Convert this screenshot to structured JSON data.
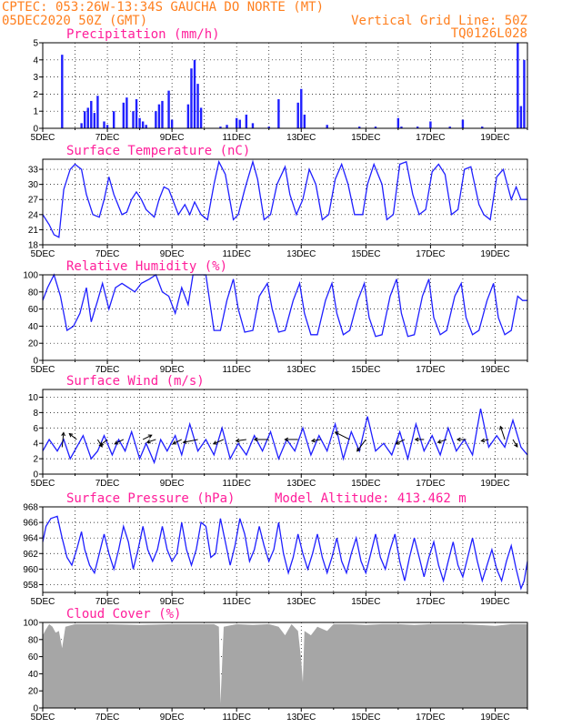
{
  "header": {
    "left_line1": "CPTEC:  053:26W-13:34S  GAUCHA DO NORTE (MT)",
    "left_line2": "05DEC2020 50Z (GMT)",
    "right_line2": "Vertical Grid Line: 50Z",
    "right_line3": "TQ0126L028"
  },
  "x_ticks": [
    "5DEC",
    "7DEC",
    "9DEC",
    "11DEC",
    "13DEC",
    "15DEC",
    "17DEC",
    "19DEC"
  ],
  "colors": {
    "header": "#ff7f1e",
    "title": "#ff1e9a",
    "series": "#1f1fff",
    "cloud": "#a6a6a6"
  },
  "chart_data": [
    {
      "id": "precip",
      "type": "bar",
      "title": "Precipitation (mm/h)",
      "ylim": [
        0,
        5
      ],
      "yticks": [
        0,
        1,
        2,
        3,
        4,
        5
      ],
      "x_days": [
        5.6,
        6.2,
        6.3,
        6.4,
        6.5,
        6.6,
        6.7,
        6.9,
        7.0,
        7.2,
        7.5,
        7.6,
        7.8,
        7.9,
        8.0,
        8.1,
        8.2,
        8.5,
        8.6,
        8.7,
        8.9,
        9.0,
        9.5,
        9.6,
        9.7,
        9.8,
        9.9,
        10.5,
        10.7,
        11.0,
        11.1,
        11.3,
        11.5,
        12.0,
        12.3,
        12.9,
        13.0,
        13.1,
        13.8,
        14.8,
        15.3,
        16.0,
        16.1,
        16.6,
        17.0,
        17.6,
        18.0,
        18.6,
        19.7,
        19.8,
        19.9
      ],
      "values": [
        4.3,
        0.3,
        1.0,
        1.2,
        1.6,
        0.9,
        1.9,
        0.4,
        0.2,
        1.0,
        1.5,
        1.8,
        1.0,
        1.7,
        0.6,
        0.4,
        0.2,
        1.0,
        1.4,
        1.6,
        2.2,
        0.5,
        1.4,
        3.5,
        4.0,
        2.6,
        1.2,
        0.1,
        0.2,
        0.6,
        0.5,
        0.8,
        0.3,
        0.1,
        1.7,
        1.5,
        2.3,
        0.8,
        0.2,
        0.1,
        0.1,
        0.6,
        0.1,
        0.1,
        0.4,
        0.1,
        0.5,
        0.1,
        5.0,
        1.3,
        4.0
      ]
    },
    {
      "id": "temp",
      "type": "line",
      "title": "Surface Temperature (nC)",
      "ylim": [
        18,
        35
      ],
      "yticks": [
        18,
        21,
        24,
        27,
        30,
        33
      ],
      "x_days": [
        5.0,
        5.2,
        5.35,
        5.5,
        5.65,
        5.85,
        6.0,
        6.2,
        6.35,
        6.55,
        6.75,
        6.9,
        7.05,
        7.2,
        7.45,
        7.6,
        7.75,
        7.9,
        8.05,
        8.2,
        8.45,
        8.6,
        8.75,
        8.9,
        9.05,
        9.2,
        9.4,
        9.55,
        9.7,
        9.9,
        10.1,
        10.3,
        10.45,
        10.65,
        10.9,
        11.05,
        11.25,
        11.5,
        11.65,
        11.85,
        12.05,
        12.25,
        12.5,
        12.65,
        12.85,
        13.05,
        13.25,
        13.45,
        13.65,
        13.85,
        14.05,
        14.25,
        14.45,
        14.65,
        14.9,
        15.05,
        15.25,
        15.5,
        15.65,
        15.85,
        16.05,
        16.25,
        16.45,
        16.65,
        16.85,
        17.05,
        17.25,
        17.45,
        17.65,
        17.85,
        18.05,
        18.25,
        18.5,
        18.65,
        18.85,
        19.05,
        19.25,
        19.5,
        19.65,
        19.8,
        20.0
      ],
      "values": [
        24,
        22,
        20,
        19.5,
        29,
        33,
        34,
        33,
        28,
        24,
        23.5,
        27,
        31.5,
        28,
        24,
        24.5,
        27,
        28.5,
        27,
        25,
        23.5,
        27,
        29.5,
        29,
        26.5,
        24,
        26,
        24,
        26.5,
        24,
        23,
        30,
        34.5,
        32,
        23,
        24,
        29,
        34.5,
        31,
        23,
        24,
        30,
        33.5,
        28,
        24,
        27,
        33,
        30,
        23,
        24,
        31,
        34,
        30,
        24,
        24,
        30,
        34,
        30,
        23,
        24,
        34,
        34.5,
        28,
        24,
        25,
        32.5,
        34,
        32,
        24,
        25,
        33,
        33.5,
        26,
        24,
        23,
        31.5,
        33,
        27,
        29.5,
        27,
        27
      ]
    },
    {
      "id": "rh",
      "type": "line",
      "title": "Relative Humidity (%)",
      "ylim": [
        0,
        100
      ],
      "yticks": [
        0,
        20,
        40,
        60,
        80,
        100
      ],
      "x_days": [
        5.0,
        5.15,
        5.35,
        5.55,
        5.75,
        5.95,
        6.15,
        6.35,
        6.5,
        6.7,
        6.85,
        7.05,
        7.25,
        7.45,
        7.65,
        7.85,
        8.05,
        8.3,
        8.5,
        8.7,
        8.9,
        9.1,
        9.3,
        9.5,
        9.65,
        9.85,
        10.05,
        10.3,
        10.5,
        10.7,
        10.9,
        11.05,
        11.25,
        11.5,
        11.7,
        11.95,
        12.1,
        12.3,
        12.5,
        12.75,
        12.95,
        13.1,
        13.3,
        13.5,
        13.75,
        13.95,
        14.1,
        14.3,
        14.5,
        14.75,
        14.95,
        15.1,
        15.3,
        15.5,
        15.75,
        15.95,
        16.1,
        16.3,
        16.5,
        16.75,
        16.95,
        17.1,
        17.3,
        17.5,
        17.75,
        17.95,
        18.1,
        18.3,
        18.5,
        18.75,
        18.95,
        19.1,
        19.3,
        19.5,
        19.7,
        19.85,
        20.0
      ],
      "values": [
        70,
        85,
        100,
        75,
        35,
        40,
        55,
        85,
        45,
        70,
        90,
        60,
        85,
        90,
        85,
        80,
        90,
        95,
        100,
        80,
        75,
        55,
        85,
        65,
        100,
        100,
        100,
        35,
        35,
        70,
        95,
        60,
        33,
        35,
        75,
        90,
        60,
        33,
        35,
        70,
        90,
        55,
        30,
        30,
        70,
        90,
        55,
        30,
        35,
        70,
        90,
        50,
        28,
        30,
        75,
        95,
        55,
        28,
        30,
        75,
        95,
        50,
        30,
        35,
        75,
        90,
        50,
        30,
        35,
        70,
        90,
        50,
        30,
        35,
        75,
        70,
        70
      ]
    },
    {
      "id": "wind",
      "type": "line",
      "title": "Surface Wind (m/s)",
      "ylim": [
        0,
        11
      ],
      "yticks": [
        0,
        2,
        4,
        6,
        8,
        10
      ],
      "x_days": [
        5.0,
        5.2,
        5.45,
        5.65,
        5.85,
        6.05,
        6.25,
        6.5,
        6.7,
        6.9,
        7.15,
        7.35,
        7.55,
        7.75,
        8.0,
        8.2,
        8.45,
        8.65,
        8.85,
        9.1,
        9.3,
        9.55,
        9.8,
        10.05,
        10.3,
        10.55,
        10.8,
        11.05,
        11.3,
        11.55,
        11.8,
        12.05,
        12.3,
        12.55,
        12.8,
        13.05,
        13.3,
        13.55,
        13.8,
        14.05,
        14.3,
        14.55,
        14.8,
        15.05,
        15.3,
        15.55,
        15.8,
        16.05,
        16.3,
        16.55,
        16.8,
        17.05,
        17.3,
        17.55,
        17.8,
        18.05,
        18.3,
        18.55,
        18.8,
        19.05,
        19.3,
        19.55,
        19.8,
        20.0
      ],
      "values": [
        3.0,
        4.5,
        3.0,
        4.5,
        2.0,
        3.5,
        5.0,
        2.0,
        3.0,
        5.0,
        2.5,
        4.5,
        3.0,
        5.5,
        2.0,
        4.0,
        1.5,
        4.5,
        3.0,
        5.0,
        2.5,
        6.5,
        3.0,
        4.5,
        2.5,
        6.0,
        2.0,
        4.0,
        2.5,
        5.0,
        3.0,
        5.5,
        2.0,
        4.5,
        3.0,
        6.0,
        2.5,
        5.0,
        3.0,
        6.5,
        2.0,
        5.5,
        3.0,
        7.5,
        3.0,
        4.0,
        2.5,
        5.5,
        2.0,
        6.5,
        3.0,
        5.0,
        2.5,
        6.0,
        3.0,
        4.5,
        2.5,
        8.5,
        3.5,
        5.0,
        3.5,
        7.0,
        3.5,
        2.5
      ],
      "vectors": [
        {
          "x_day": 5.6,
          "y": 3.5,
          "u": 0.1,
          "v": 1.0
        },
        {
          "x_day": 6.05,
          "y": 4.5,
          "u": -0.5,
          "v": 0.4
        },
        {
          "x_day": 6.7,
          "y": 4.5,
          "u": 0.3,
          "v": -0.5
        },
        {
          "x_day": 7.0,
          "y": 4.5,
          "u": -0.5,
          "v": -0.4
        },
        {
          "x_day": 7.5,
          "y": 4.5,
          "u": -0.6,
          "v": -0.3
        },
        {
          "x_day": 8.1,
          "y": 4.5,
          "u": 0.6,
          "v": 0.3
        },
        {
          "x_day": 8.5,
          "y": 4.5,
          "u": -0.6,
          "v": -0.2
        },
        {
          "x_day": 9.3,
          "y": 4.5,
          "u": -0.6,
          "v": -0.3
        },
        {
          "x_day": 9.8,
          "y": 4.5,
          "u": -1.0,
          "v": -0.2
        },
        {
          "x_day": 10.6,
          "y": 4.5,
          "u": -0.7,
          "v": -0.3
        },
        {
          "x_day": 11.3,
          "y": 4.5,
          "u": -0.7,
          "v": -0.1
        },
        {
          "x_day": 12.0,
          "y": 4.5,
          "u": -1.0,
          "v": 0.0
        },
        {
          "x_day": 12.9,
          "y": 4.5,
          "u": -0.9,
          "v": 0.0
        },
        {
          "x_day": 13.6,
          "y": 4.5,
          "u": -0.6,
          "v": -0.1
        },
        {
          "x_day": 14.5,
          "y": 4.5,
          "u": -1.0,
          "v": 0.5
        },
        {
          "x_day": 15.0,
          "y": 4.5,
          "u": -0.6,
          "v": -0.8
        },
        {
          "x_day": 16.2,
          "y": 4.5,
          "u": -0.6,
          "v": -0.3
        },
        {
          "x_day": 16.8,
          "y": 4.5,
          "u": -0.6,
          "v": 0.0
        },
        {
          "x_day": 17.5,
          "y": 4.5,
          "u": -0.6,
          "v": -0.2
        },
        {
          "x_day": 18.1,
          "y": 4.5,
          "u": -0.6,
          "v": 0.0
        },
        {
          "x_day": 18.8,
          "y": 4.5,
          "u": -0.5,
          "v": -0.1
        },
        {
          "x_day": 19.3,
          "y": 4.5,
          "u": -0.3,
          "v": 0.9
        },
        {
          "x_day": 19.55,
          "y": 4.5,
          "u": 0.3,
          "v": -0.5
        }
      ]
    },
    {
      "id": "pres",
      "type": "line",
      "title": "Surface Pressure (hPa)",
      "note": "Model Altitude: 413.462 m",
      "ylim": [
        957,
        968
      ],
      "yticks": [
        958,
        960,
        962,
        964,
        966,
        968
      ],
      "x_days": [
        5.0,
        5.1,
        5.25,
        5.45,
        5.6,
        5.75,
        5.9,
        6.05,
        6.2,
        6.3,
        6.45,
        6.6,
        6.75,
        6.9,
        7.05,
        7.2,
        7.35,
        7.5,
        7.65,
        7.8,
        7.95,
        8.1,
        8.25,
        8.4,
        8.55,
        8.7,
        8.85,
        9.0,
        9.15,
        9.3,
        9.45,
        9.6,
        9.75,
        9.9,
        10.05,
        10.2,
        10.35,
        10.5,
        10.65,
        10.8,
        10.95,
        11.1,
        11.25,
        11.4,
        11.55,
        11.7,
        11.85,
        12.0,
        12.15,
        12.3,
        12.45,
        12.6,
        12.75,
        12.9,
        13.05,
        13.2,
        13.35,
        13.5,
        13.65,
        13.8,
        13.95,
        14.1,
        14.25,
        14.4,
        14.55,
        14.7,
        14.85,
        15.0,
        15.15,
        15.3,
        15.45,
        15.6,
        15.75,
        15.9,
        16.05,
        16.2,
        16.35,
        16.5,
        16.65,
        16.8,
        16.95,
        17.1,
        17.25,
        17.4,
        17.55,
        17.7,
        17.85,
        18.0,
        18.15,
        18.3,
        18.45,
        18.6,
        18.75,
        18.9,
        19.05,
        19.2,
        19.35,
        19.5,
        19.65,
        19.8,
        19.9,
        20.0
      ],
      "values": [
        963.5,
        965.5,
        966.5,
        966.8,
        964,
        961.5,
        960.5,
        962.5,
        964.8,
        962.5,
        960.5,
        959.5,
        962,
        964.5,
        962,
        960,
        962.5,
        965.5,
        963.5,
        960,
        962.5,
        965.5,
        962.5,
        961,
        962.5,
        965.5,
        962.5,
        961,
        962,
        966,
        962.5,
        960.5,
        962.5,
        966,
        965.5,
        961.5,
        962,
        966.5,
        963.5,
        960.5,
        963,
        966.5,
        964.5,
        961,
        962.5,
        965.5,
        963,
        961,
        962.5,
        966,
        962,
        959.5,
        961.5,
        964.5,
        962,
        960,
        962,
        964.5,
        961.5,
        959.5,
        961.5,
        964,
        961,
        959.5,
        962,
        964,
        961,
        959.5,
        962,
        964.5,
        961.5,
        960,
        962.5,
        964.5,
        961,
        958.5,
        961.5,
        964,
        961.5,
        959,
        961.5,
        963.5,
        960.5,
        958.5,
        961,
        963.5,
        960.5,
        959,
        961.5,
        964,
        961,
        958.5,
        960.5,
        962.5,
        960,
        958.5,
        961,
        963,
        960,
        957.5,
        958.5,
        961
      ]
    },
    {
      "id": "cloud",
      "type": "area",
      "title": "Cloud Cover (%)",
      "ylim": [
        0,
        100
      ],
      "yticks": [
        0,
        20,
        40,
        60,
        80,
        100
      ],
      "x_days": [
        5.0,
        5.1,
        5.2,
        5.3,
        5.4,
        5.5,
        5.6,
        5.7,
        6.0,
        7.0,
        8.0,
        9.0,
        10.0,
        10.3,
        10.45,
        10.5,
        10.6,
        11.0,
        11.5,
        12.0,
        12.3,
        12.5,
        12.7,
        12.9,
        13.0,
        13.05,
        13.1,
        13.3,
        13.5,
        13.8,
        14.0,
        14.5,
        15.0,
        15.5,
        16.0,
        16.5,
        17.0,
        18.0,
        19.0,
        19.5,
        20.0
      ],
      "values": [
        85,
        92,
        98,
        95,
        88,
        90,
        70,
        95,
        98,
        98,
        97,
        98,
        98,
        98,
        95,
        5,
        95,
        98,
        97,
        98,
        95,
        85,
        98,
        90,
        55,
        30,
        90,
        85,
        95,
        90,
        98,
        98,
        97,
        98,
        98,
        97,
        98,
        98,
        96,
        98,
        98
      ]
    }
  ]
}
